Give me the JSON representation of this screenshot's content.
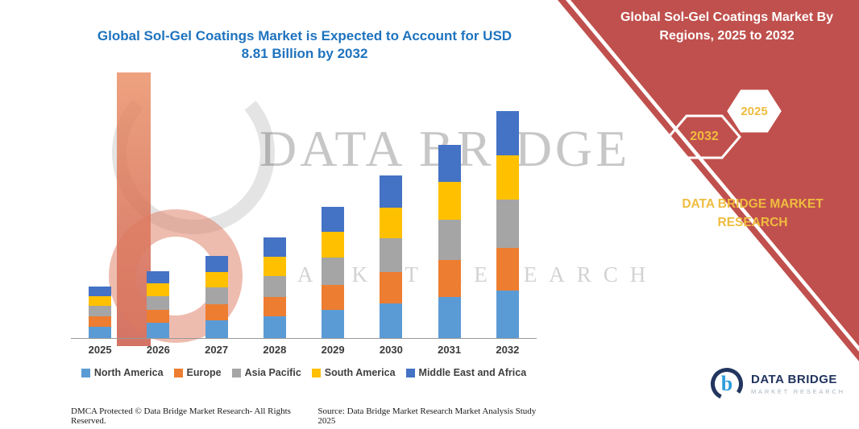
{
  "header": {
    "title_lines": [
      "Global Sol-Gel Coatings Market is Expected to Account for USD",
      "8.81 Billion by 2032"
    ]
  },
  "panel": {
    "title_lines": [
      "Global  Sol-Gel Coatings Market By",
      "Regions, 2025 to 2032"
    ],
    "badge_2032": "2032",
    "badge_2025": "2025",
    "brand": "DATA BRIDGE MARKET RESEARCH"
  },
  "watermark": {
    "line1": "DATA BRIDGE",
    "line2": "MARKET RESEARCH"
  },
  "footer": {
    "copyright": "DMCA Protected © Data Bridge Market Research- All Rights Reserved.",
    "source": "Source: Data Bridge Market Research Market Analysis Study 2025"
  },
  "logo": {
    "name": "DATA BRIDGE",
    "tagline": "MARKET RESEARCH"
  },
  "colors": {
    "panel-red": "#C0504D",
    "title-blue": "#1E73BE",
    "gold": "#EFBC3F",
    "navy": "#21355F",
    "logo-blue": "#2D9CDB"
  },
  "chart_data": {
    "type": "bar",
    "stacked": true,
    "title": "Global Sol-Gel Coatings Market is Expected to Account for USD 8.81 Billion by 2032",
    "xlabel": "",
    "ylabel": "",
    "units": "USD Billion",
    "ylim": [
      0,
      9
    ],
    "grid": false,
    "legend_position": "bottom",
    "categories": [
      "2025",
      "2026",
      "2027",
      "2028",
      "2029",
      "2030",
      "2031",
      "2032"
    ],
    "series": [
      {
        "name": "North America",
        "color": "#5B9BD5",
        "values": [
          0.45,
          0.58,
          0.7,
          0.85,
          1.1,
          1.35,
          1.6,
          1.85
        ]
      },
      {
        "name": "Europe",
        "color": "#ED7D31",
        "values": [
          0.38,
          0.5,
          0.62,
          0.75,
          0.95,
          1.2,
          1.42,
          1.65
        ]
      },
      {
        "name": "Asia Pacific",
        "color": "#A5A5A5",
        "values": [
          0.42,
          0.54,
          0.66,
          0.82,
          1.08,
          1.32,
          1.58,
          1.88
        ]
      },
      {
        "name": "South America",
        "color": "#FFC000",
        "values": [
          0.38,
          0.5,
          0.6,
          0.75,
          0.98,
          1.2,
          1.45,
          1.7
        ]
      },
      {
        "name": "Middle East and Africa",
        "color": "#4472C4",
        "values": [
          0.37,
          0.48,
          0.62,
          0.73,
          0.99,
          1.23,
          1.45,
          1.73
        ]
      }
    ],
    "totals": [
      2.0,
      2.6,
      3.2,
      3.9,
      5.1,
      6.3,
      7.5,
      8.81
    ]
  }
}
